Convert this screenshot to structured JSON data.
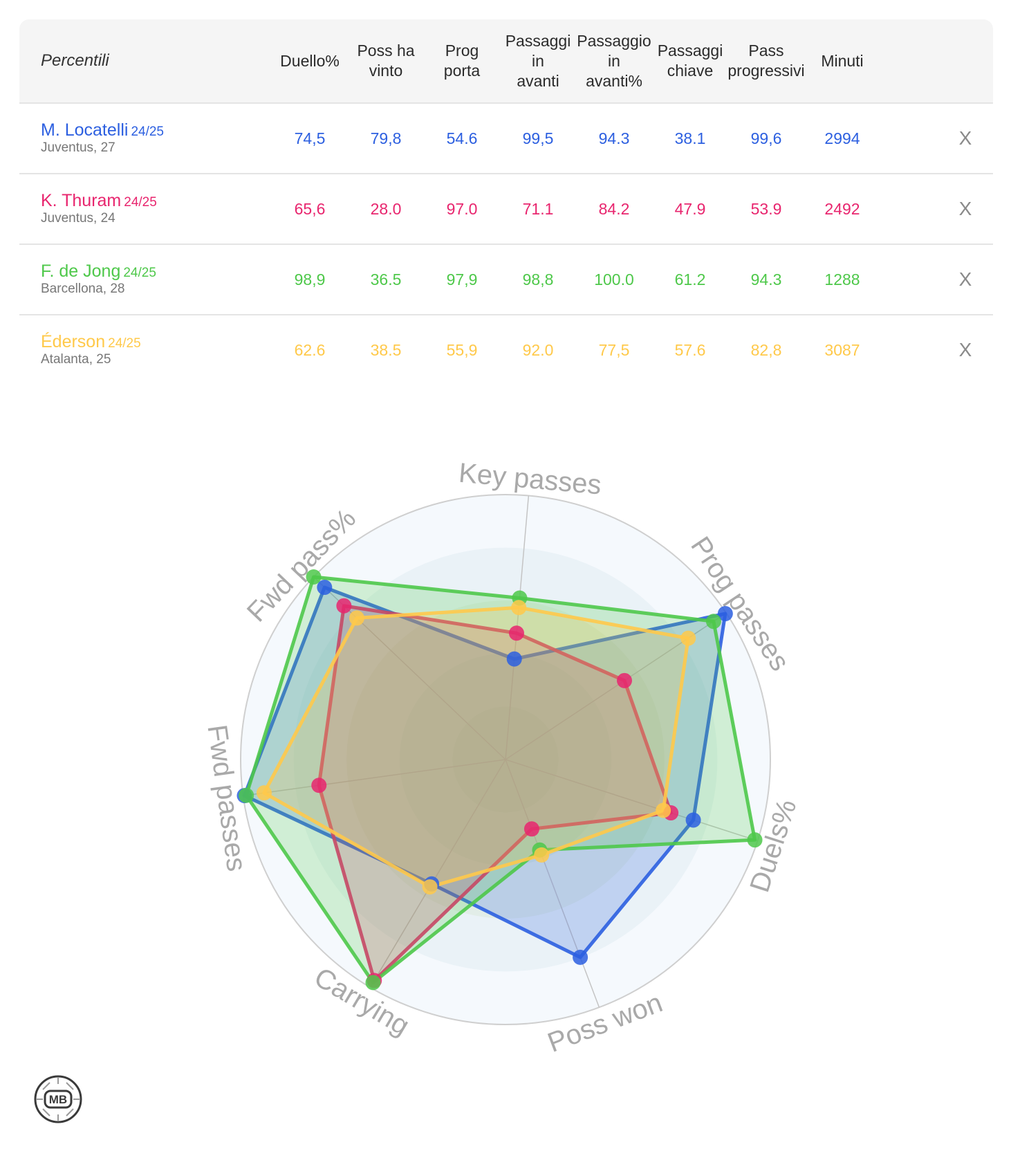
{
  "table": {
    "corner_label": "Percentili",
    "headers": [
      "Duello%",
      "Poss ha\nvinto",
      "Prog\nporta",
      "Passaggi\nin\navanti",
      "Passaggio\nin\navanti%",
      "Passaggi\nchiave",
      "Pass\nprogressivi",
      "Minuti"
    ],
    "remove_label": "X",
    "players": [
      {
        "name": "M. Locatelli",
        "season": "24/25",
        "team": "Juventus, 27",
        "color": "#2c5fe0",
        "values": [
          "74,5",
          "79,8",
          "54.6",
          "99,5",
          "94.3",
          "38.1",
          "99,6",
          "2994"
        ]
      },
      {
        "name": "K. Thuram",
        "season": "24/25",
        "team": "Juventus, 24",
        "color": "#e8256e",
        "values": [
          "65,6",
          "28.0",
          "97.0",
          "71.1",
          "84.2",
          "47.9",
          "53.9",
          "2492"
        ]
      },
      {
        "name": "F. de Jong",
        "season": "24/25",
        "team": "Barcellona, 28",
        "color": "#4ec84a",
        "values": [
          "98,9",
          "36.5",
          "97,9",
          "98,8",
          "100.0",
          "61.2",
          "94.3",
          "1288"
        ]
      },
      {
        "name": "Éderson",
        "season": "24/25",
        "team": "Atalanta, 25",
        "color": "#ffc94a",
        "values": [
          "62.6",
          "38.5",
          "55,9",
          "92.0",
          "77,5",
          "57.6",
          "82,8",
          "3087"
        ]
      }
    ]
  },
  "chart_data": {
    "type": "radar",
    "axes": [
      "Key passes",
      "Prog passes",
      "Duels%",
      "Poss won",
      "Carrying",
      "Fwd passes",
      "Fwd pass%"
    ],
    "range": [
      0,
      100
    ],
    "series": [
      {
        "name": "M. Locatelli",
        "color": "#2c5fe0",
        "values": [
          38.1,
          99.6,
          74.5,
          79.8,
          54.6,
          99.5,
          94.3
        ]
      },
      {
        "name": "K. Thuram",
        "color": "#e8256e",
        "values": [
          47.9,
          53.9,
          65.6,
          28.0,
          97.0,
          71.1,
          84.2
        ]
      },
      {
        "name": "F. de Jong",
        "color": "#4ec84a",
        "values": [
          61.2,
          94.3,
          98.9,
          36.5,
          97.9,
          98.8,
          100.0
        ]
      },
      {
        "name": "Éderson",
        "color": "#ffc94a",
        "values": [
          57.6,
          82.8,
          62.6,
          38.5,
          55.9,
          92.0,
          77.5
        ]
      }
    ],
    "grid": true
  },
  "logo": {
    "text": "MB"
  }
}
